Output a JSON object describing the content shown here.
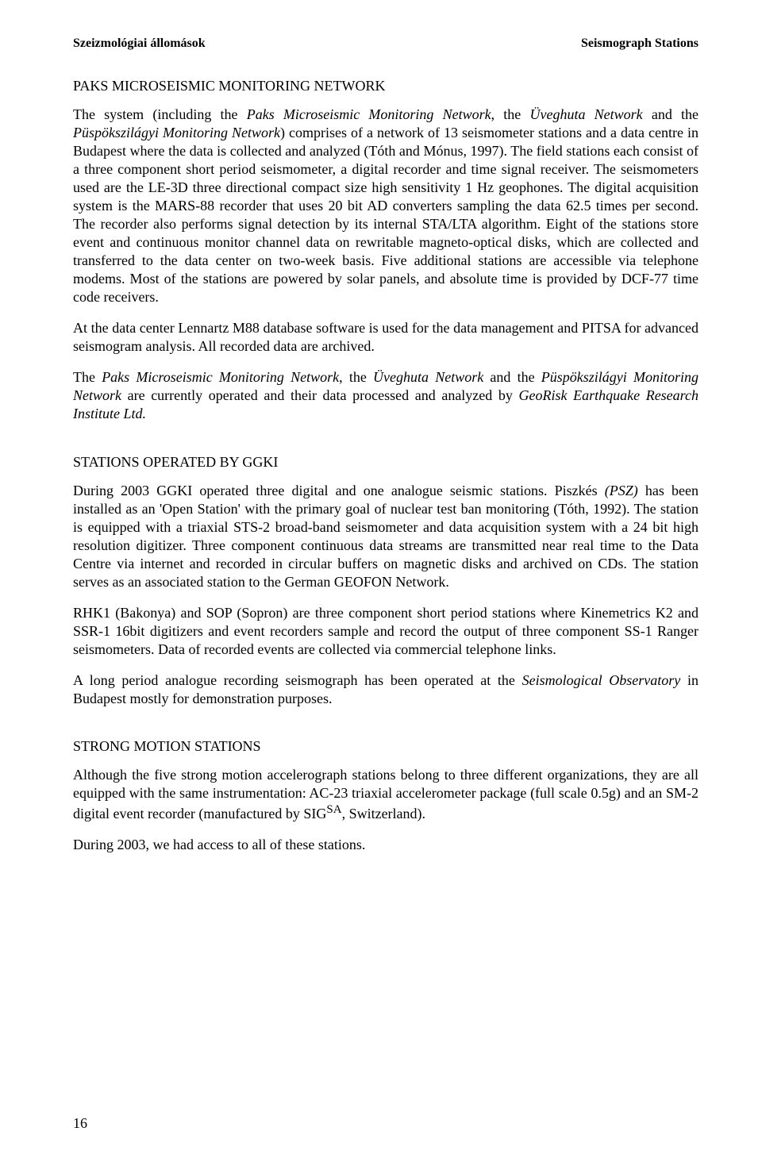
{
  "header": {
    "left": "Szeizmológiai állomások",
    "right": "Seismograph Stations"
  },
  "sections": {
    "paks": {
      "title": "PAKS MICROSEISMIC MONITORING NETWORK",
      "p1_a": "The system (including the ",
      "p1_b": "Paks Microseismic Monitoring Network",
      "p1_c": ", the ",
      "p1_d": "Üveghuta Network",
      "p1_e": " and the ",
      "p1_f": "Püspökszilágyi Monitoring Network",
      "p1_g": ") comprises of a network of 13 seismometer stations and a data centre in Budapest where the data is collected and analyzed (Tóth and Mónus, 1997). The field stations each consist of a three component short period seismometer, a digital recorder and time signal receiver. The seismometers used are the LE-3D three directional compact size high sensitivity 1 Hz geophones. The digital acquisition system is the MARS-88 recorder that uses 20 bit AD converters sampling the data 62.5 times per second. The recorder also performs signal detection by its internal STA/LTA algorithm. Eight of the stations store event and continuous monitor channel data on rewritable magneto-optical disks, which are collected and transferred to the data center on two-week basis. Five additional stations are accessible via telephone modems. Most of the stations are powered by solar panels, and absolute time is provided by DCF-77 time code receivers.",
      "p2": "At the data center Lennartz M88 database software is used for the data management and PITSA for advanced seismogram analysis. All recorded data are archived.",
      "p3_a": "The ",
      "p3_b": "Paks Microseismic Monitoring Network",
      "p3_c": ", the ",
      "p3_d": "Üveghuta Network",
      "p3_e": " and the ",
      "p3_f": "Püspökszilágyi Monitoring Network",
      "p3_g": " are currently operated and their data processed and analyzed by ",
      "p3_h": "GeoRisk Earthquake Research Institute Ltd."
    },
    "ggki": {
      "title": "STATIONS OPERATED BY GGKI",
      "p1_a": "During 2003 GGKI operated three digital and one analogue seismic stations. Piszkés ",
      "p1_b": "(PSZ)",
      "p1_c": " has been installed as an 'Open Station' with the primary goal of nuclear test ban monitoring (Tóth, 1992). The station is equipped with a triaxial STS-2 broad-band seismometer and data acquisition system with a 24 bit high resolution digitizer. Three component continuous data streams are transmitted near real time to the Data Centre via internet and recorded in circular buffers on magnetic disks and archived on CDs. The station serves as an associated station to the German GEOFON Network.",
      "p2": "RHK1 (Bakonya) and SOP (Sopron) are three component short period stations where Kinemetrics K2 and SSR-1 16bit digitizers and event recorders sample and record the output of three component SS-1 Ranger seismometers. Data of recorded events are collected via commercial telephone links.",
      "p3_a": "A long period analogue recording seismograph has been operated at the ",
      "p3_b": "Seismological Observatory",
      "p3_c": " in Budapest mostly for demonstration purposes."
    },
    "strong": {
      "title": "STRONG MOTION STATIONS",
      "p1_a": "Although the five strong motion accelerograph stations belong to three different organizations, they are all equipped with the same instrumentation: AC-23 triaxial accelerometer package (full scale 0.5g) and an SM-2 digital event recorder (manufactured by SIG",
      "p1_sup": "SA",
      "p1_b": ", Switzerland).",
      "p2": "During 2003, we had access to all of these stations."
    }
  },
  "page_number": "16"
}
